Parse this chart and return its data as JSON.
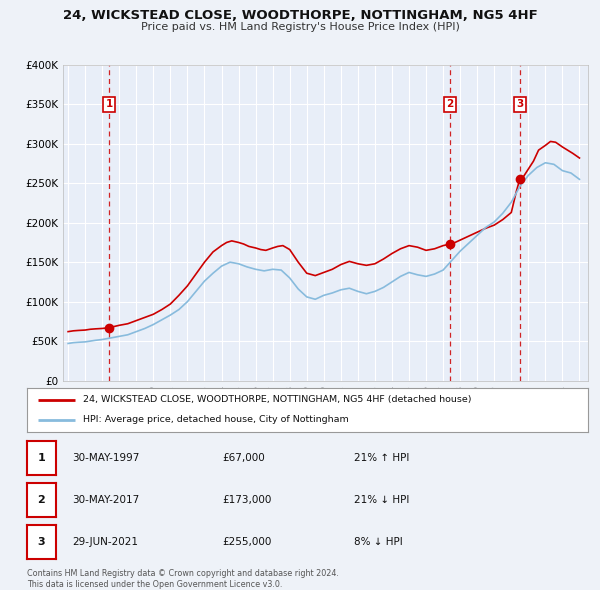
{
  "title": "24, WICKSTEAD CLOSE, WOODTHORPE, NOTTINGHAM, NG5 4HF",
  "subtitle": "Price paid vs. HM Land Registry's House Price Index (HPI)",
  "bg_color": "#eef2f8",
  "plot_bg_color": "#e8eef8",
  "red_line_color": "#cc0000",
  "blue_line_color": "#88bbdd",
  "sale_prices": [
    67000,
    173000,
    255000
  ],
  "sale_labels": [
    "1",
    "2",
    "3"
  ],
  "sale_year_floats": [
    1997.413,
    2017.413,
    2021.496
  ],
  "sale_hpi_pct": [
    "21% ↑ HPI",
    "21% ↓ HPI",
    "8% ↓ HPI"
  ],
  "sale_date_labels": [
    "30-MAY-1997",
    "30-MAY-2017",
    "29-JUN-2021"
  ],
  "sale_price_labels": [
    "£67,000",
    "£173,000",
    "£255,000"
  ],
  "ylim": [
    0,
    400000
  ],
  "yticks": [
    0,
    50000,
    100000,
    150000,
    200000,
    250000,
    300000,
    350000,
    400000
  ],
  "ytick_labels": [
    "£0",
    "£50K",
    "£100K",
    "£150K",
    "£200K",
    "£250K",
    "£300K",
    "£350K",
    "£400K"
  ],
  "xlim_start": 1994.7,
  "xlim_end": 2025.5,
  "xticks": [
    1995,
    1996,
    1997,
    1998,
    1999,
    2000,
    2001,
    2002,
    2003,
    2004,
    2005,
    2006,
    2007,
    2008,
    2009,
    2010,
    2011,
    2012,
    2013,
    2014,
    2015,
    2016,
    2017,
    2018,
    2019,
    2020,
    2021,
    2022,
    2023,
    2024,
    2025
  ],
  "legend_label_red": "24, WICKSTEAD CLOSE, WOODTHORPE, NOTTINGHAM, NG5 4HF (detached house)",
  "legend_label_blue": "HPI: Average price, detached house, City of Nottingham",
  "footer": "Contains HM Land Registry data © Crown copyright and database right 2024.\nThis data is licensed under the Open Government Licence v3.0.",
  "red_line_data": {
    "years": [
      1995.0,
      1995.3,
      1995.6,
      1996.0,
      1996.3,
      1996.6,
      1997.0,
      1997.2,
      1997.413,
      1997.6,
      1998.0,
      1998.5,
      1999.0,
      1999.5,
      2000.0,
      2000.5,
      2001.0,
      2001.5,
      2002.0,
      2002.5,
      2003.0,
      2003.5,
      2004.0,
      2004.3,
      2004.6,
      2005.0,
      2005.3,
      2005.6,
      2006.0,
      2006.3,
      2006.6,
      2007.0,
      2007.3,
      2007.6,
      2008.0,
      2008.5,
      2009.0,
      2009.5,
      2010.0,
      2010.5,
      2011.0,
      2011.5,
      2012.0,
      2012.5,
      2013.0,
      2013.5,
      2014.0,
      2014.5,
      2015.0,
      2015.5,
      2016.0,
      2016.5,
      2017.0,
      2017.413,
      2017.6,
      2018.0,
      2018.5,
      2019.0,
      2019.5,
      2020.0,
      2020.5,
      2021.0,
      2021.3,
      2021.496,
      2021.7,
      2022.0,
      2022.3,
      2022.6,
      2023.0,
      2023.3,
      2023.6,
      2024.0,
      2024.3,
      2024.6,
      2025.0
    ],
    "values": [
      62000,
      63000,
      63500,
      64000,
      65000,
      65500,
      66000,
      66500,
      67000,
      68000,
      70000,
      72000,
      76000,
      80000,
      84000,
      90000,
      97000,
      108000,
      120000,
      135000,
      150000,
      163000,
      171000,
      175000,
      177000,
      175000,
      173000,
      170000,
      168000,
      166000,
      165000,
      168000,
      170000,
      171000,
      166000,
      150000,
      136000,
      133000,
      137000,
      141000,
      147000,
      151000,
      148000,
      146000,
      148000,
      154000,
      161000,
      167000,
      171000,
      169000,
      165000,
      167000,
      171000,
      173000,
      174000,
      178000,
      183000,
      188000,
      193000,
      197000,
      204000,
      213000,
      240000,
      255000,
      258000,
      268000,
      278000,
      292000,
      298000,
      303000,
      302000,
      296000,
      292000,
      288000,
      282000
    ]
  },
  "blue_line_data": {
    "years": [
      1995.0,
      1995.3,
      1995.6,
      1996.0,
      1996.3,
      1996.6,
      1997.0,
      1997.5,
      1998.0,
      1998.5,
      1999.0,
      1999.5,
      2000.0,
      2000.5,
      2001.0,
      2001.5,
      2002.0,
      2002.5,
      2003.0,
      2003.5,
      2004.0,
      2004.5,
      2005.0,
      2005.5,
      2006.0,
      2006.5,
      2007.0,
      2007.5,
      2008.0,
      2008.5,
      2009.0,
      2009.5,
      2010.0,
      2010.5,
      2011.0,
      2011.5,
      2012.0,
      2012.5,
      2013.0,
      2013.5,
      2014.0,
      2014.5,
      2015.0,
      2015.5,
      2016.0,
      2016.5,
      2017.0,
      2017.5,
      2018.0,
      2018.5,
      2019.0,
      2019.5,
      2020.0,
      2020.5,
      2021.0,
      2021.5,
      2022.0,
      2022.5,
      2023.0,
      2023.5,
      2024.0,
      2024.5,
      2025.0
    ],
    "values": [
      47000,
      48000,
      48500,
      49000,
      50000,
      51000,
      52000,
      54000,
      56000,
      58000,
      62000,
      66000,
      71000,
      77000,
      83000,
      90000,
      100000,
      113000,
      126000,
      136000,
      145000,
      150000,
      148000,
      144000,
      141000,
      139000,
      141000,
      140000,
      130000,
      116000,
      106000,
      103000,
      108000,
      111000,
      115000,
      117000,
      113000,
      110000,
      113000,
      118000,
      125000,
      132000,
      137000,
      134000,
      132000,
      135000,
      140000,
      152000,
      164000,
      174000,
      184000,
      194000,
      201000,
      212000,
      226000,
      246000,
      260000,
      270000,
      276000,
      274000,
      266000,
      263000,
      255000
    ]
  }
}
